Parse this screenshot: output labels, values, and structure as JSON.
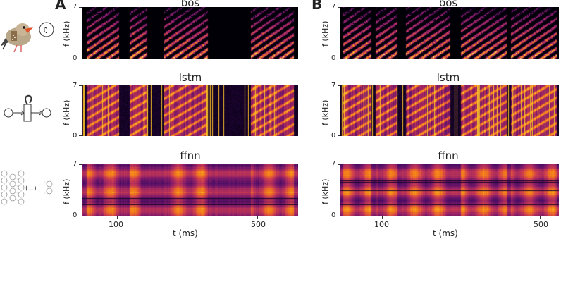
{
  "panels": {
    "A": {
      "letter": "A"
    },
    "B": {
      "letter": "B"
    }
  },
  "rows": [
    {
      "title": "bos"
    },
    {
      "title": "lstm"
    },
    {
      "title": "ffnn"
    }
  ],
  "axes": {
    "ylabel": "f (kHz)",
    "ytick_top": "7",
    "ytick_bottom": "0",
    "xlabel": "t (ms)",
    "xtick_1": "100",
    "xtick_2": "500"
  },
  "icons": {
    "ffnn_ellipsis": "(...)"
  },
  "chart_data": {
    "type": "heatmap",
    "panels": [
      "A",
      "B"
    ],
    "rows": [
      "bos",
      "lstm",
      "ffnn"
    ],
    "ylabel": "f (kHz)",
    "ylim": [
      0,
      7
    ],
    "xlabel": "t (ms)",
    "xticks": [
      100,
      500
    ]
  }
}
